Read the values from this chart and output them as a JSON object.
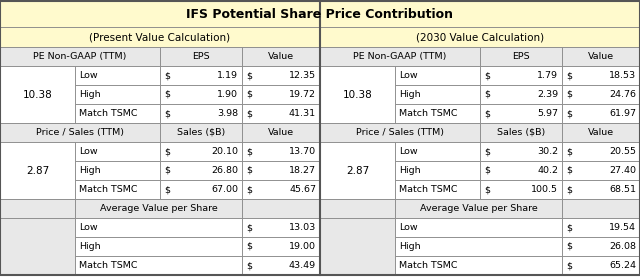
{
  "title": "IFS Potential Share Price Contribution",
  "title_bg": "#FFFACD",
  "header1": "(Present Value Calculation)",
  "header2": "(2030 Value Calculation)",
  "section_bg": "#FFFACD",
  "subhdr_bg": "#E8E8E8",
  "data_bg": "#FFFFFF",
  "avg_left_bg": "#E8E8E8",
  "border_color": "#888888",
  "text_color": "#000000",
  "pe_label": "PE Non-GAAP (TTM)",
  "ps_label": "Price / Sales (TTM)",
  "eps_label": "EPS",
  "sales_label": "Sales ($B)",
  "value_label": "Value",
  "avg_label": "Average Value per Share",
  "pe_ratio": "10.38",
  "ps_ratio": "2.87",
  "present": {
    "pe": {
      "low_eps": "1.19",
      "low_val": "12.35",
      "high_eps": "1.90",
      "high_val": "19.72",
      "match_eps": "3.98",
      "match_val": "41.31"
    },
    "ps": {
      "low_sales": "20.10",
      "low_val": "13.70",
      "high_sales": "26.80",
      "high_val": "18.27",
      "match_sales": "67.00",
      "match_val": "45.67"
    },
    "avg": {
      "low": "13.03",
      "high": "19.00",
      "match": "43.49"
    }
  },
  "future": {
    "pe": {
      "low_eps": "1.79",
      "low_val": "18.53",
      "high_eps": "2.39",
      "high_val": "24.76",
      "match_eps": "5.97",
      "match_val": "61.97"
    },
    "ps": {
      "low_sales": "30.2",
      "low_val": "20.55",
      "high_sales": "40.2",
      "high_val": "27.40",
      "match_sales": "100.5",
      "match_val": "68.51"
    },
    "avg": {
      "low": "19.54",
      "high": "26.08",
      "match": "65.24"
    }
  }
}
